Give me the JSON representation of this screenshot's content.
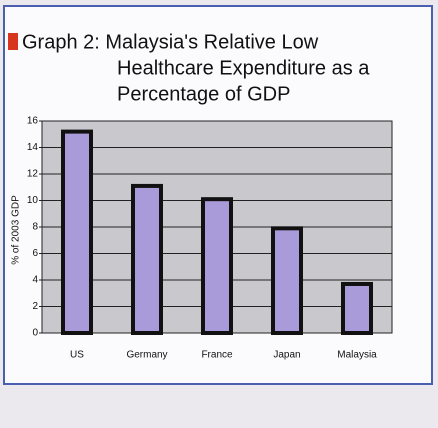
{
  "chart_data": {
    "type": "bar",
    "title": [
      "Graph 2: Malaysia's Relative Low",
      "Healthcare Expenditure as a",
      "Percentage of GDP"
    ],
    "y_label": "% of 2003 GDP",
    "categories": [
      "US",
      "Germany",
      "France",
      "Japan",
      "Malaysia"
    ],
    "values": [
      15.2,
      11.1,
      10.1,
      7.9,
      3.7
    ],
    "color": "#a99ad9",
    "ylim": [
      0,
      16
    ],
    "yticks": [
      0,
      2,
      4,
      6,
      8,
      10,
      12,
      14,
      16
    ],
    "grid": true
  }
}
